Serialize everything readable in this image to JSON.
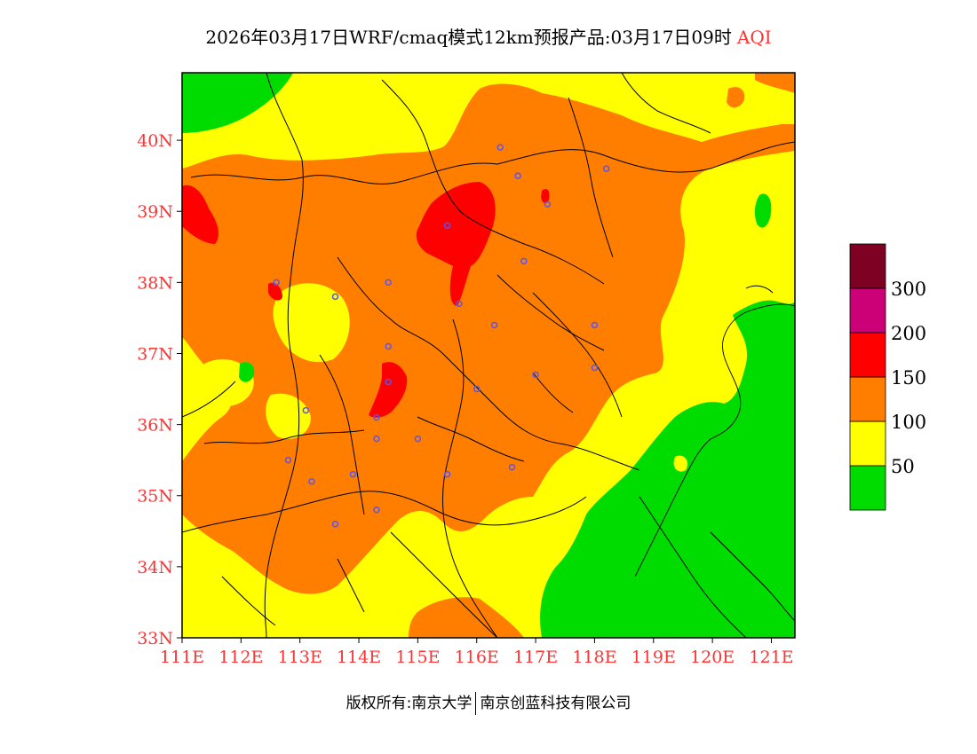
{
  "header": {
    "title": "2026年03月17日WRF/cmaq模式12km预报产品:03月17日09时",
    "product": "AQI"
  },
  "map": {
    "lat_ticks": [
      {
        "label": "40N",
        "value": 40
      },
      {
        "label": "39N",
        "value": 39
      },
      {
        "label": "38N",
        "value": 38
      },
      {
        "label": "37N",
        "value": 37
      },
      {
        "label": "36N",
        "value": 36
      },
      {
        "label": "35N",
        "value": 35
      },
      {
        "label": "34N",
        "value": 34
      },
      {
        "label": "33N",
        "value": 33
      }
    ],
    "lon_ticks": [
      {
        "label": "111E",
        "value": 111
      },
      {
        "label": "112E",
        "value": 112
      },
      {
        "label": "113E",
        "value": 113
      },
      {
        "label": "114E",
        "value": 114
      },
      {
        "label": "115E",
        "value": 115
      },
      {
        "label": "116E",
        "value": 116
      },
      {
        "label": "117E",
        "value": 117
      },
      {
        "label": "118E",
        "value": 118
      },
      {
        "label": "119E",
        "value": 119
      },
      {
        "label": "120E",
        "value": 120
      },
      {
        "label": "121E",
        "value": 121
      }
    ],
    "lon_range": [
      111,
      121.4
    ],
    "lat_range": [
      33,
      40.95
    ],
    "city_markers": [
      {
        "lon": 116.4,
        "lat": 39.9
      },
      {
        "lon": 116.7,
        "lat": 39.5
      },
      {
        "lon": 118.2,
        "lat": 39.6
      },
      {
        "lon": 115.5,
        "lat": 38.8
      },
      {
        "lon": 117.2,
        "lat": 39.1
      },
      {
        "lon": 116.8,
        "lat": 38.3
      },
      {
        "lon": 114.5,
        "lat": 38.0
      },
      {
        "lon": 113.6,
        "lat": 37.8
      },
      {
        "lon": 112.6,
        "lat": 38.0
      },
      {
        "lon": 115.7,
        "lat": 37.7
      },
      {
        "lon": 116.3,
        "lat": 37.4
      },
      {
        "lon": 118.0,
        "lat": 37.4
      },
      {
        "lon": 114.5,
        "lat": 37.1
      },
      {
        "lon": 114.5,
        "lat": 36.6
      },
      {
        "lon": 116.0,
        "lat": 36.5
      },
      {
        "lon": 117.0,
        "lat": 36.7
      },
      {
        "lon": 118.0,
        "lat": 36.8
      },
      {
        "lon": 113.1,
        "lat": 36.2
      },
      {
        "lon": 114.3,
        "lat": 36.1
      },
      {
        "lon": 114.3,
        "lat": 35.8
      },
      {
        "lon": 115.0,
        "lat": 35.8
      },
      {
        "lon": 112.8,
        "lat": 35.5
      },
      {
        "lon": 113.2,
        "lat": 35.2
      },
      {
        "lon": 113.9,
        "lat": 35.3
      },
      {
        "lon": 115.5,
        "lat": 35.3
      },
      {
        "lon": 116.6,
        "lat": 35.4
      },
      {
        "lon": 114.3,
        "lat": 34.8
      },
      {
        "lon": 113.6,
        "lat": 34.6
      }
    ]
  },
  "legend": {
    "levels": [
      {
        "label": "",
        "color": "#00dc00"
      },
      {
        "label": "50",
        "color": "#ffff00"
      },
      {
        "label": "100",
        "color": "#ff7e00"
      },
      {
        "label": "150",
        "color": "#ff0000"
      },
      {
        "label": "200",
        "color": "#cc0077"
      },
      {
        "label": "300",
        "color": "#7e0023"
      }
    ]
  },
  "footer": {
    "copyright": "版权所有:南京大学",
    "company": "南京创蓝科技有限公司"
  },
  "colors": {
    "good": "#00dc00",
    "moderate": "#ffff00",
    "sensitive": "#ff7e00",
    "unhealthy": "#ff0000",
    "very_unhealthy": "#cc0077",
    "hazardous": "#7e0023",
    "axis_label": "#ff3333",
    "marker": "#5555ff"
  }
}
